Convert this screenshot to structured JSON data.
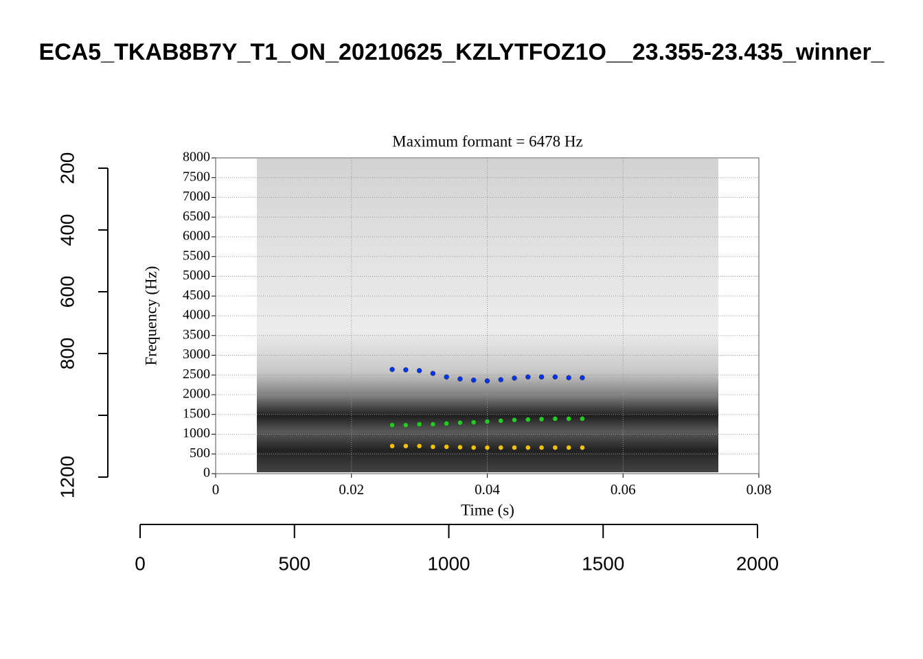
{
  "chart_data": [
    {
      "type": "axes",
      "title": "ECA5_TKAB8B7Y_T1_ON_20210625_KZLYTFOZ1O__23.355-23.435_winner_",
      "xlim": [
        0,
        2000
      ],
      "xticks": [
        0,
        500,
        1000,
        1500,
        2000
      ],
      "ylim": [
        200,
        1200
      ],
      "y_reversed": true,
      "yticks": [
        200,
        400,
        600,
        800,
        {
          "value": 1000,
          "label": null
        },
        1200
      ]
    },
    {
      "type": "scatter",
      "title": "Maximum formant = 6478 Hz",
      "x_label": "Time (s)",
      "y_label": "Frequency (Hz)",
      "xlim": [
        0,
        0.08
      ],
      "xticks": [
        0,
        0.02,
        0.04,
        0.06,
        0.08
      ],
      "ylim": [
        0,
        8000
      ],
      "yticks": [
        0,
        500,
        1000,
        1500,
        2000,
        2500,
        3000,
        3500,
        4000,
        4500,
        5000,
        5500,
        6000,
        6500,
        7000,
        7500,
        8000
      ],
      "grid": true,
      "x": [
        0.026,
        0.028,
        0.03,
        0.032,
        0.034,
        0.036,
        0.038,
        0.04,
        0.042,
        0.044,
        0.046,
        0.048,
        0.05,
        0.052,
        0.054
      ],
      "series": [
        {
          "color": "#0033ee",
          "values": [
            2640,
            2630,
            2610,
            2540,
            2450,
            2400,
            2370,
            2350,
            2380,
            2420,
            2450,
            2450,
            2450,
            2430,
            2430
          ]
        },
        {
          "color": "#22cc22",
          "values": [
            1230,
            1230,
            1250,
            1250,
            1270,
            1290,
            1300,
            1320,
            1340,
            1360,
            1370,
            1380,
            1390,
            1390,
            1390
          ]
        },
        {
          "color": "#f2c200",
          "values": [
            700,
            700,
            700,
            680,
            680,
            670,
            660,
            660,
            660,
            660,
            660,
            660,
            660,
            660,
            660
          ]
        }
      ]
    }
  ]
}
